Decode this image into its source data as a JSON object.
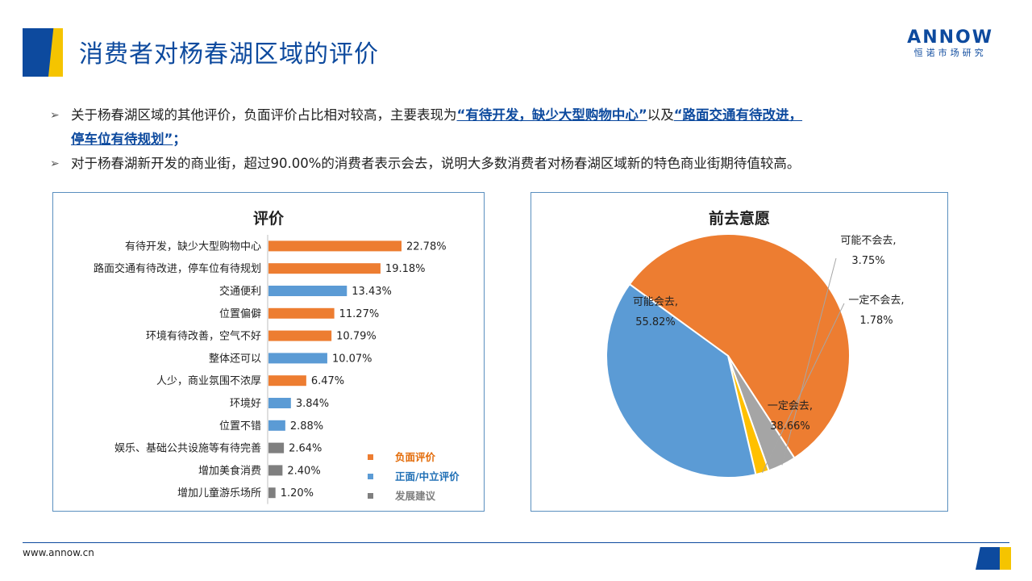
{
  "header": {
    "title": "消费者对杨春湖区域的评价",
    "logo_main": "ANNOW",
    "logo_sub": "恒诺市场研究"
  },
  "bullets": [
    {
      "pre": "关于杨春湖区域的其他评价，负面评价占比相对较高，主要表现为",
      "hl1": "“有待开发，缺少大型购物中心”",
      "mid": "以及",
      "hl2a": "“路面交通有待改进，",
      "hl2b": "停车位有待规划”",
      "post": "；"
    },
    {
      "text": "对于杨春湖新开发的商业街，超过90.00%的消费者表示会去，说明大多数消费者对杨春湖区域新的特色商业街期待值较高。"
    }
  ],
  "footer": {
    "url": "www.annow.cn"
  },
  "chart_data": [
    {
      "type": "bar",
      "orientation": "horizontal",
      "title": "评价",
      "categories": [
        "有待开发，缺少大型购物中心",
        "路面交通有待改进，停车位有待规划",
        "交通便利",
        "位置偏僻",
        "环境有待改善，空气不好",
        "整体还可以",
        "人少，商业氛围不浓厚",
        "环境好",
        "位置不错",
        "娱乐、基础公共设施等有待完善",
        "增加美食消费",
        "增加儿童游乐场所"
      ],
      "values": [
        22.78,
        19.18,
        13.43,
        11.27,
        10.79,
        10.07,
        6.47,
        3.84,
        2.88,
        2.64,
        2.4,
        1.2
      ],
      "value_labels": [
        "22.78%",
        "19.18%",
        "13.43%",
        "11.27%",
        "10.79%",
        "10.07%",
        "6.47%",
        "3.84%",
        "2.88%",
        "2.64%",
        "2.40%",
        "1.20%"
      ],
      "groups": [
        "负面评价",
        "负面评价",
        "正面/中立评价",
        "负面评价",
        "负面评价",
        "正面/中立评价",
        "负面评价",
        "正面/中立评价",
        "正面/中立评价",
        "发展建议",
        "发展建议",
        "发展建议"
      ],
      "legend": [
        {
          "name": "负面评价",
          "color": "#ed7d31"
        },
        {
          "name": "正面/中立评价",
          "color": "#5b9bd5"
        },
        {
          "name": "发展建议",
          "color": "#7f7f7f"
        }
      ],
      "legend_position": "bottom-right"
    },
    {
      "type": "pie",
      "title": "前去意愿",
      "slices": [
        {
          "label": "可能会去,",
          "value": 55.82,
          "value_label": "55.82%",
          "color": "#ed7d31"
        },
        {
          "label": "可能不会去,",
          "value": 3.75,
          "value_label": "3.75%",
          "color": "#a5a5a5"
        },
        {
          "label": "一定不会去,",
          "value": 1.78,
          "value_label": "1.78%",
          "color": "#ffc000"
        },
        {
          "label": "一定会去,",
          "value": 38.66,
          "value_label": "38.66%",
          "color": "#5b9bd5"
        }
      ]
    }
  ]
}
